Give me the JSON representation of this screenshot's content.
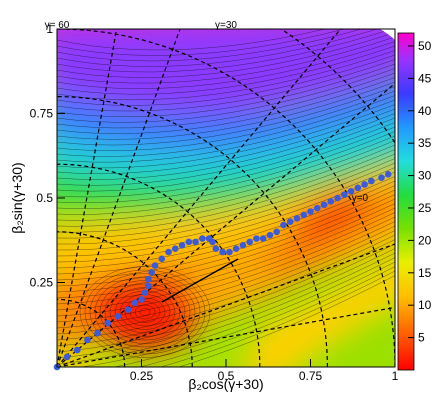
{
  "chart_data": {
    "type": "heatmap",
    "title": "",
    "xlabel": "β₂cos(γ+30)",
    "ylabel": "β₂sin(γ+30)",
    "xlim": [
      0,
      1
    ],
    "ylim": [
      0,
      1
    ],
    "x_ticks": [
      {
        "value": 0.25,
        "label": "0.25"
      },
      {
        "value": 0.5,
        "label": "0.5"
      },
      {
        "value": 0.75,
        "label": "0.75"
      },
      {
        "value": 1,
        "label": "1"
      }
    ],
    "y_ticks": [
      {
        "value": 0.25,
        "label": "0.25"
      },
      {
        "value": 0.5,
        "label": "0.5"
      },
      {
        "value": 0.75,
        "label": "0.75"
      },
      {
        "value": 1,
        "label": "1"
      }
    ],
    "gamma_labels": [
      {
        "label": "γ= 60",
        "angle_deg": 60
      },
      {
        "label": "γ=30",
        "angle_deg": 30
      },
      {
        "label": "γ=0",
        "angle_deg": 0
      }
    ],
    "colorbar": {
      "min": 0,
      "max": 52,
      "ticks": [
        5,
        10,
        15,
        20,
        25,
        30,
        35,
        40,
        45,
        50
      ]
    },
    "minimum_path": [
      [
        0.0,
        0.0
      ],
      [
        0.03,
        0.03
      ],
      [
        0.06,
        0.05
      ],
      [
        0.09,
        0.08
      ],
      [
        0.12,
        0.1
      ],
      [
        0.15,
        0.13
      ],
      [
        0.18,
        0.15
      ],
      [
        0.21,
        0.17
      ],
      [
        0.23,
        0.19
      ],
      [
        0.25,
        0.2
      ],
      [
        0.26,
        0.22
      ],
      [
        0.27,
        0.24
      ],
      [
        0.27,
        0.26
      ],
      [
        0.28,
        0.28
      ],
      [
        0.29,
        0.3
      ],
      [
        0.31,
        0.32
      ],
      [
        0.33,
        0.34
      ],
      [
        0.35,
        0.35
      ],
      [
        0.37,
        0.36
      ],
      [
        0.39,
        0.37
      ],
      [
        0.41,
        0.37
      ],
      [
        0.43,
        0.38
      ],
      [
        0.45,
        0.38
      ],
      [
        0.46,
        0.37
      ],
      [
        0.47,
        0.35
      ],
      [
        0.49,
        0.34
      ],
      [
        0.51,
        0.34
      ],
      [
        0.53,
        0.35
      ],
      [
        0.55,
        0.36
      ],
      [
        0.57,
        0.37
      ],
      [
        0.59,
        0.38
      ],
      [
        0.61,
        0.38
      ],
      [
        0.63,
        0.39
      ],
      [
        0.65,
        0.4
      ],
      [
        0.67,
        0.42
      ],
      [
        0.69,
        0.43
      ],
      [
        0.71,
        0.44
      ],
      [
        0.73,
        0.45
      ],
      [
        0.75,
        0.46
      ],
      [
        0.77,
        0.47
      ],
      [
        0.79,
        0.48
      ],
      [
        0.81,
        0.49
      ],
      [
        0.83,
        0.5
      ],
      [
        0.85,
        0.51
      ],
      [
        0.87,
        0.52
      ],
      [
        0.89,
        0.53
      ],
      [
        0.91,
        0.54
      ],
      [
        0.93,
        0.55
      ],
      [
        0.96,
        0.56
      ],
      [
        0.98,
        0.57
      ]
    ],
    "colors": {
      "path_marker": "#3b5bdb",
      "grid_lines": "#000000"
    }
  }
}
